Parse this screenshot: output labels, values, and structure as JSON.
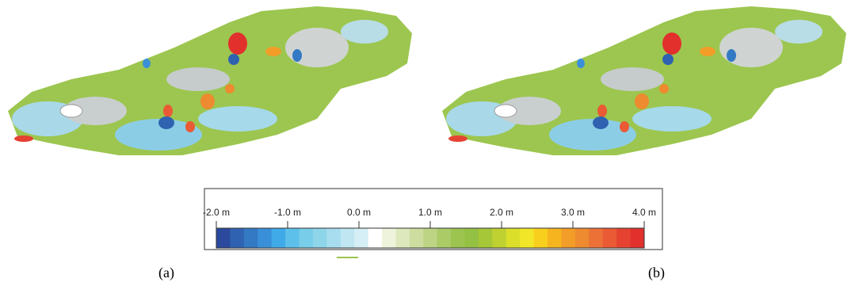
{
  "panels": [
    "(a)",
    "(b)"
  ],
  "colorbar": {
    "range": [
      -2,
      4
    ],
    "ticks": [
      {
        "value": -2,
        "label": "-2.0 m"
      },
      {
        "value": -1,
        "label": "-1.0 m"
      },
      {
        "value": 0,
        "label": "0.0 m"
      },
      {
        "value": 1,
        "label": "1.0 m"
      },
      {
        "value": 2,
        "label": "2.0 m"
      },
      {
        "value": 3,
        "label": "3.0 m"
      },
      {
        "value": 4,
        "label": "4.0 m"
      }
    ],
    "colors": [
      "#2b4a9e",
      "#2f62b0",
      "#3479c4",
      "#3a90d8",
      "#40aae8",
      "#5cc0ea",
      "#78cde8",
      "#8fd5ea",
      "#a7ddee",
      "#bfe6f1",
      "#d6eef5",
      "#ffffff",
      "#eef3dc",
      "#dde8bd",
      "#cddd9f",
      "#bcd484",
      "#aacb66",
      "#9cc44f",
      "#94c043",
      "#a6c738",
      "#bfd131",
      "#dbdf2a",
      "#f2e628",
      "#f9cf1e",
      "#f6b51f",
      "#f29d27",
      "#ee8a2f",
      "#ec7137",
      "#e95a35",
      "#e54232",
      "#e2302d"
    ]
  }
}
